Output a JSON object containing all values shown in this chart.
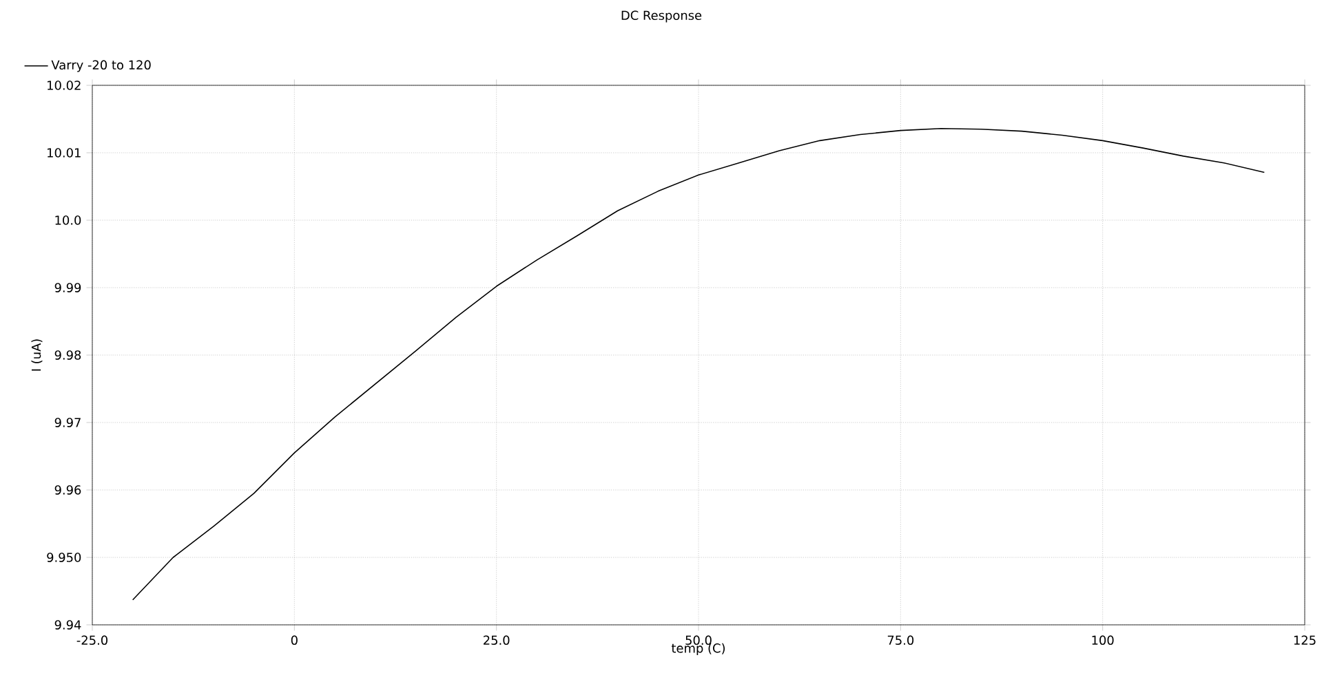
{
  "chart_data": {
    "type": "line",
    "title": "DC Response",
    "xlabel": "temp (C)",
    "ylabel": "I (uA)",
    "x": [
      -20,
      -15,
      -10,
      -5,
      0,
      5,
      10,
      15,
      20,
      25,
      30,
      35,
      40,
      45,
      50,
      55,
      60,
      65,
      70,
      75,
      80,
      85,
      90,
      95,
      100,
      105,
      110,
      115,
      120
    ],
    "series": [
      {
        "name": "Varry -20 to 120",
        "color": "#000000",
        "values": [
          9.9437,
          9.95,
          9.9546,
          9.9595,
          9.9655,
          9.9708,
          9.9757,
          9.9806,
          9.9856,
          9.9902,
          9.9941,
          9.9977,
          10.0014,
          10.0043,
          10.0067,
          10.0085,
          10.0103,
          10.0118,
          10.0127,
          10.0133,
          10.0136,
          10.0135,
          10.0132,
          10.0126,
          10.0118,
          10.0107,
          10.0095,
          10.0085,
          10.0071
        ]
      }
    ],
    "xlim": [
      -25,
      125
    ],
    "ylim": [
      9.94,
      10.02
    ],
    "xticks": [
      {
        "value": -25,
        "label": "-25.0"
      },
      0,
      {
        "value": 25,
        "label": "25.0"
      },
      {
        "value": 50,
        "label": "50.0"
      },
      {
        "value": 75,
        "label": "75.0"
      },
      100,
      125
    ],
    "yticks": [
      9.94,
      {
        "value": 9.95,
        "label": "9.950"
      },
      9.96,
      9.97,
      9.98,
      9.99,
      {
        "value": 10.0,
        "label": "10.0"
      },
      10.01,
      10.02
    ],
    "grid": true,
    "legend": "top left",
    "marker": "none",
    "line_style": "solid"
  }
}
